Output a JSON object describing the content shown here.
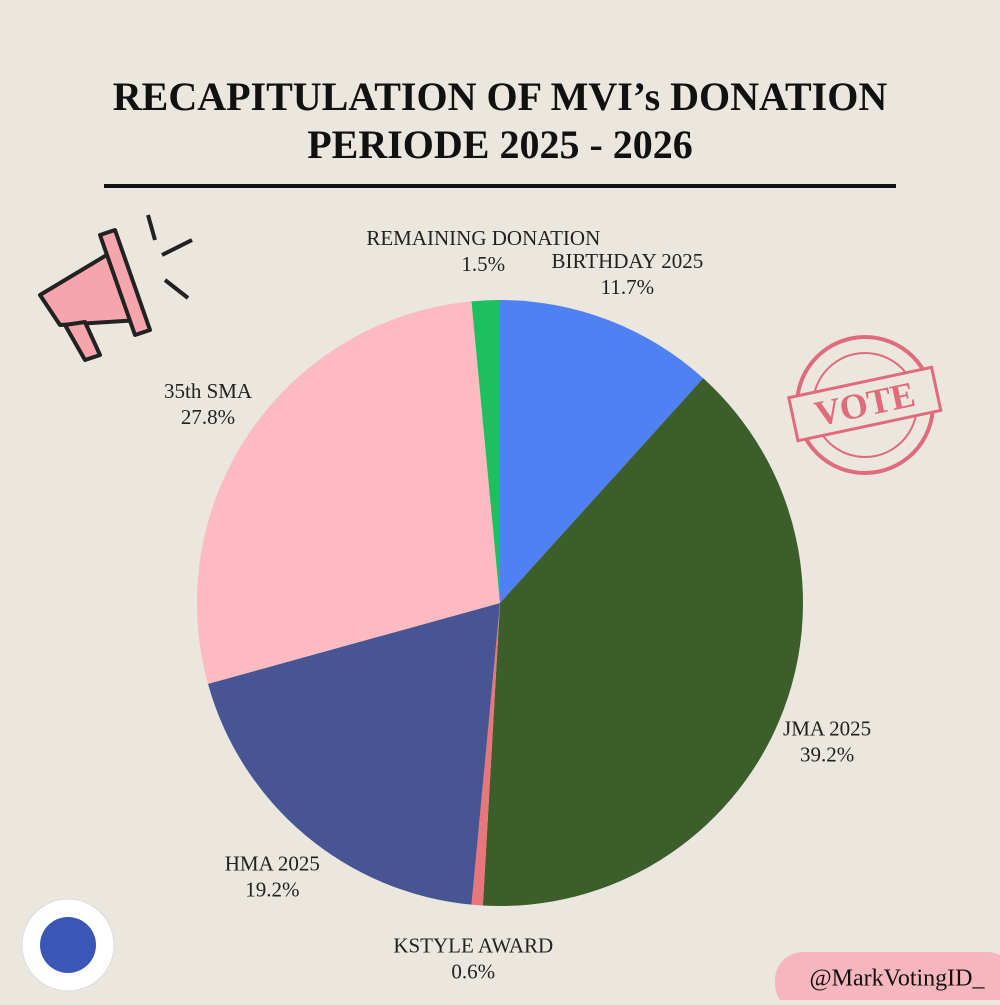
{
  "chart_data": {
    "type": "pie",
    "title": [
      "RECAPITULATION OF MVI’s DONATION",
      "PERIODE 2025 - 2026"
    ],
    "categories": [
      "BIRTHDAY 2025",
      "JMA 2025",
      "KSTYLE AWARD",
      "HMA 2025",
      "35th SMA",
      "REMAINING DONATION"
    ],
    "values": [
      11.7,
      39.2,
      0.6,
      19.2,
      27.8,
      1.5
    ],
    "value_labels": [
      "11.7%",
      "39.2%",
      "0.6%",
      "19.2%",
      "27.8%",
      "1.5%"
    ],
    "colors": [
      "#4f81f5",
      "#3b5e2b",
      "#e8767a",
      "#475692",
      "#fdbbc1",
      "#1dbf5f"
    ]
  },
  "stamp": "VOTE",
  "handle": "@MarkVotingID_"
}
